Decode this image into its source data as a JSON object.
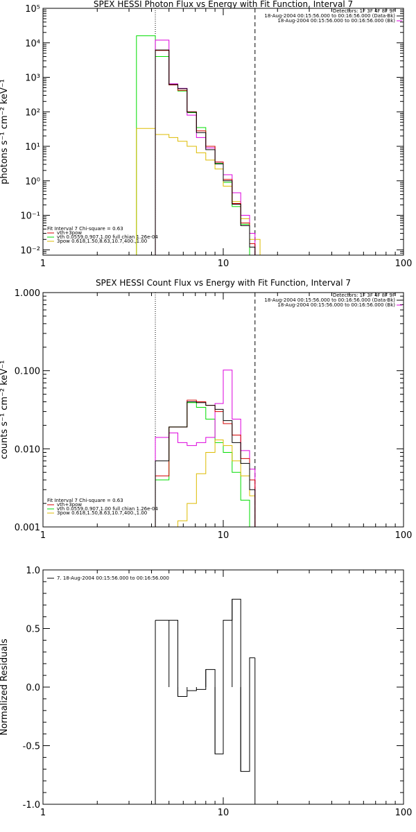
{
  "colors": {
    "axes": "#000000",
    "red": "#d40000",
    "green": "#00dd00",
    "magenta": "#dd00dd",
    "yellow": "#ddbb00",
    "black": "#000000"
  },
  "chart_data": [
    {
      "id": "photon",
      "type": "line",
      "title": "SPEX HESSI Photon Flux vs Energy with Fit Function, Interval 7",
      "ylabel": "photons s⁻¹ cm⁻² keV⁻¹",
      "xscale": "log",
      "yscale": "log",
      "xlim": [
        1,
        100
      ],
      "ylim": [
        0.007,
        100000
      ],
      "x_ticks": [
        1,
        10,
        100
      ],
      "x_tick_labels": [
        "1",
        "10",
        "100"
      ],
      "y_ticks": [
        0.01,
        0.1,
        1,
        10,
        100,
        1000,
        10000,
        100000
      ],
      "y_tick_labels": [
        "10⁻²",
        "10⁻¹",
        "10⁰",
        "10¹",
        "10²",
        "10³",
        "10⁴",
        "10⁵"
      ],
      "vlines": [
        {
          "x": 4.2,
          "style": "dotted"
        },
        {
          "x": 15,
          "style": "dashed"
        }
      ],
      "top_legend": [
        {
          "text": "Detectors: 1F 3F 4F 8F 9F",
          "color": "#000000"
        },
        {
          "text": "18-Aug-2004 00:15:56.000 to 00:16:56.000 (Data-Bk)",
          "color": "#000000"
        },
        {
          "text": "18-Aug-2004 00:15:56.000 to 00:16:56.000 (Bk)",
          "color": "#dd00dd"
        }
      ],
      "legend": [
        {
          "text": "Fit Interval  7   Chi-square = 0.63",
          "color": "#000000"
        },
        {
          "text": "vth+3pow",
          "color": "#d40000"
        },
        {
          "text": "vth 0.0559,0.907,1.00  full chian 1.26e-04",
          "color": "#00dd00"
        },
        {
          "text": "3pow 0.618,1.50,8.63,10.7,400.,1.00",
          "color": "#ddbb00"
        }
      ],
      "series": [
        {
          "color": "#00dd00",
          "edges": [
            3.3,
            4.2,
            5.0,
            5.6,
            6.3,
            7.1,
            8.0,
            9.0,
            10.0,
            11.2,
            12.5,
            14.0
          ],
          "values": [
            16000,
            4000,
            600,
            400,
            95,
            35,
            10,
            3.2,
            0.9,
            0.18,
            0.055
          ]
        },
        {
          "color": "#ddbb00",
          "edges": [
            3.3,
            4.2,
            5.0,
            5.6,
            6.3,
            7.1,
            8.0,
            9.0,
            10.0,
            11.2,
            12.5,
            14.0,
            16.0
          ],
          "values": [
            33,
            22,
            18,
            14,
            10,
            6.5,
            4,
            2.2,
            0.7,
            0.25,
            0.08,
            0.02
          ]
        },
        {
          "color": "#dd00dd",
          "edges": [
            4.2,
            5.0,
            5.6,
            6.3,
            7.1,
            8.0,
            9.0,
            10.0,
            11.2,
            12.5,
            14.0,
            15.0
          ],
          "values": [
            12000,
            650,
            480,
            80,
            18,
            9,
            3.5,
            1.5,
            0.45,
            0.1,
            0.03
          ]
        },
        {
          "color": "#d40000",
          "edges": [
            4.2,
            5.0,
            5.6,
            6.3,
            7.1,
            8.0,
            9.0,
            10.0,
            11.2,
            12.5,
            14.0,
            15.0
          ],
          "values": [
            6000,
            600,
            420,
            100,
            28,
            10,
            3.5,
            1.1,
            0.22,
            0.06,
            0.015
          ]
        },
        {
          "color": "#000000",
          "edges": [
            4.2,
            5.0,
            5.6,
            6.3,
            7.1,
            8.0,
            9.0,
            10.0,
            11.2,
            12.5,
            14.0,
            15.0
          ],
          "values": [
            6200,
            620,
            470,
            98,
            25,
            8,
            3.1,
            1.0,
            0.21,
            0.05,
            0.012
          ]
        }
      ]
    },
    {
      "id": "count",
      "type": "line",
      "title": "SPEX HESSI Count Flux vs Energy with Fit Function, Interval 7",
      "ylabel": "counts s⁻¹ cm⁻² keV⁻¹",
      "xscale": "log",
      "yscale": "log",
      "xlim": [
        1,
        100
      ],
      "ylim": [
        0.001,
        1.0
      ],
      "x_ticks": [
        1,
        10,
        100
      ],
      "x_tick_labels": [
        "1",
        "10",
        "100"
      ],
      "y_ticks": [
        0.001,
        0.01,
        0.1,
        1.0
      ],
      "y_tick_labels": [
        "0.001",
        "0.010",
        "0.100",
        "1.000"
      ],
      "vlines": [
        {
          "x": 4.2,
          "style": "dotted"
        },
        {
          "x": 15,
          "style": "dashed"
        }
      ],
      "top_legend": [
        {
          "text": "Detectors: 1F 3F 4F 8F 9F",
          "color": "#000000"
        },
        {
          "text": "18-Aug-2004 00:15:56.000 to 00:16:56.000 (Data-Bk)",
          "color": "#000000"
        },
        {
          "text": "18-Aug-2004 00:15:56.000 to 00:16:56.000 (Bk)",
          "color": "#dd00dd"
        }
      ],
      "legend": [
        {
          "text": "Fit Interval  7   Chi-square = 0.63",
          "color": "#000000"
        },
        {
          "text": "vth+3pow",
          "color": "#d40000"
        },
        {
          "text": "vth 0.0559,0.907,1.00  full chian 1.26e-04",
          "color": "#00dd00"
        },
        {
          "text": "3pow 0.618,1.50,8.63,10.7,400.,1.00",
          "color": "#ddbb00"
        }
      ],
      "series": [
        {
          "color": "#00dd00",
          "edges": [
            4.2,
            5.0,
            6.3,
            7.1,
            8.0,
            9.0,
            10.0,
            11.2,
            12.5,
            14.0
          ],
          "values": [
            0.004,
            0.019,
            0.039,
            0.034,
            0.024,
            0.012,
            0.009,
            0.005,
            0.0022
          ]
        },
        {
          "color": "#ddbb00",
          "edges": [
            5.6,
            6.3,
            7.1,
            8.0,
            9.0,
            10.0,
            11.2,
            12.5,
            14.0,
            15.0
          ],
          "values": [
            0.0012,
            0.002,
            0.0048,
            0.009,
            0.013,
            0.011,
            0.007,
            0.0045,
            0.0025
          ]
        },
        {
          "color": "#dd00dd",
          "edges": [
            4.2,
            5.0,
            5.6,
            6.3,
            7.1,
            8.0,
            9.0,
            10.0,
            11.2,
            12.5,
            14.0,
            15.0
          ],
          "values": [
            0.014,
            0.016,
            0.012,
            0.011,
            0.012,
            0.014,
            0.038,
            0.102,
            0.024,
            0.0095,
            0.0055
          ]
        },
        {
          "color": "#d40000",
          "edges": [
            4.2,
            5.0,
            6.3,
            7.1,
            8.0,
            9.0,
            10.0,
            11.2,
            12.5,
            14.0,
            15.0
          ],
          "values": [
            0.0045,
            0.019,
            0.042,
            0.04,
            0.036,
            0.03,
            0.021,
            0.015,
            0.0075,
            0.004
          ]
        },
        {
          "color": "#000000",
          "edges": [
            4.2,
            5.0,
            6.3,
            7.1,
            8.0,
            9.0,
            10.0,
            11.2,
            12.5,
            14.0,
            15.0
          ],
          "values": [
            0.007,
            0.019,
            0.04,
            0.039,
            0.036,
            0.032,
            0.023,
            0.012,
            0.0065,
            0.003
          ]
        }
      ]
    },
    {
      "id": "resid",
      "type": "line",
      "title": "",
      "ylabel": "Normalized Residuals",
      "xscale": "log",
      "yscale": "linear",
      "xlim": [
        1,
        100
      ],
      "ylim": [
        -1.0,
        1.0
      ],
      "x_ticks": [
        1,
        10,
        100
      ],
      "x_tick_labels": [
        "1",
        "10",
        "100"
      ],
      "y_ticks": [
        -1.0,
        -0.5,
        0.0,
        0.5,
        1.0
      ],
      "y_tick_labels": [
        "-1.0",
        "-0.5",
        "0.0",
        "0.5",
        "1.0"
      ],
      "legend": [
        {
          "text": "7. 18-Aug-2004 00:15:56.000 to 00:16:56.000",
          "color": "#000000"
        }
      ],
      "series": [
        {
          "color": "#000000",
          "edges": [
            4.2,
            5.0,
            5.6,
            6.3,
            7.1,
            8.0,
            9.0,
            10.0,
            11.2,
            12.5,
            14.0,
            15.0
          ],
          "values": [
            0.57,
            0.57,
            -0.08,
            -0.03,
            -0.02,
            0.15,
            -0.57,
            0.57,
            0.75,
            -0.72,
            0.25
          ]
        }
      ]
    }
  ]
}
